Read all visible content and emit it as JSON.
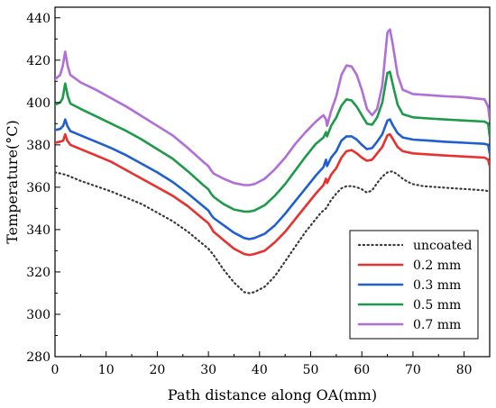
{
  "chart_data": {
    "type": "line",
    "title": "",
    "xlabel": "Path distance along OA(mm)",
    "ylabel": "Temperature(°C)",
    "xlim": [
      0,
      85
    ],
    "ylim": [
      280,
      445
    ],
    "xticks": [
      0,
      10,
      20,
      30,
      40,
      50,
      60,
      70,
      80
    ],
    "yticks": [
      280,
      300,
      320,
      340,
      360,
      380,
      400,
      420,
      440
    ],
    "grid": false,
    "legend_position": "bottom-right",
    "series": [
      {
        "name": "uncoated",
        "color": "#3a3a3a",
        "dash": "dotted",
        "points": [
          [
            0,
            367
          ],
          [
            1,
            366.5
          ],
          [
            2,
            366
          ],
          [
            3,
            365
          ],
          [
            5,
            363
          ],
          [
            8,
            360.5
          ],
          [
            11,
            358
          ],
          [
            14,
            355
          ],
          [
            17,
            352
          ],
          [
            20,
            348
          ],
          [
            23,
            344
          ],
          [
            26,
            339
          ],
          [
            29,
            333
          ],
          [
            30,
            331
          ],
          [
            31,
            328
          ],
          [
            33,
            321
          ],
          [
            35,
            315
          ],
          [
            37,
            310.5
          ],
          [
            38,
            310
          ],
          [
            39,
            310.5
          ],
          [
            41,
            313
          ],
          [
            43,
            318
          ],
          [
            45,
            325
          ],
          [
            47,
            332
          ],
          [
            49,
            339
          ],
          [
            51,
            345
          ],
          [
            52,
            348
          ],
          [
            53,
            350
          ],
          [
            54,
            354
          ],
          [
            55,
            357
          ],
          [
            56,
            359.5
          ],
          [
            57,
            360.5
          ],
          [
            58,
            360.5
          ],
          [
            59,
            360
          ],
          [
            60,
            359
          ],
          [
            61,
            357.5
          ],
          [
            62,
            358.5
          ],
          [
            63,
            362
          ],
          [
            64,
            365
          ],
          [
            65,
            367
          ],
          [
            66,
            367.5
          ],
          [
            67,
            366
          ],
          [
            68,
            364
          ],
          [
            69,
            362.5
          ],
          [
            70,
            361.5
          ],
          [
            72,
            360.5
          ],
          [
            75,
            360
          ],
          [
            78,
            359.5
          ],
          [
            81,
            359
          ],
          [
            84,
            358.5
          ],
          [
            85,
            358
          ]
        ]
      },
      {
        "name": "0.2 mm",
        "color": "#e8312e",
        "dash": "solid",
        "points": [
          [
            0,
            381
          ],
          [
            1,
            381.5
          ],
          [
            1.6,
            382
          ],
          [
            2,
            385
          ],
          [
            2.4,
            382
          ],
          [
            3,
            380
          ],
          [
            5,
            378
          ],
          [
            8,
            375
          ],
          [
            11,
            372
          ],
          [
            14,
            368
          ],
          [
            17,
            364
          ],
          [
            20,
            360
          ],
          [
            23,
            356
          ],
          [
            26,
            351
          ],
          [
            29,
            345
          ],
          [
            30,
            343
          ],
          [
            30.5,
            341
          ],
          [
            31,
            339
          ],
          [
            33,
            335
          ],
          [
            35,
            331
          ],
          [
            37,
            328.5
          ],
          [
            38,
            328
          ],
          [
            39,
            328.5
          ],
          [
            41,
            330
          ],
          [
            43,
            334
          ],
          [
            45,
            339
          ],
          [
            47,
            345
          ],
          [
            49,
            351
          ],
          [
            51,
            357
          ],
          [
            52.5,
            361
          ],
          [
            53,
            364
          ],
          [
            53.2,
            362
          ],
          [
            54,
            366
          ],
          [
            55,
            369
          ],
          [
            56,
            374
          ],
          [
            57,
            377
          ],
          [
            58,
            377.5
          ],
          [
            59,
            376
          ],
          [
            60,
            374
          ],
          [
            61,
            372.5
          ],
          [
            62,
            373
          ],
          [
            63,
            376
          ],
          [
            64,
            379
          ],
          [
            65,
            384.5
          ],
          [
            65.5,
            385
          ],
          [
            66,
            383
          ],
          [
            67,
            379
          ],
          [
            68,
            377
          ],
          [
            70,
            376
          ],
          [
            73,
            375.5
          ],
          [
            76,
            375
          ],
          [
            80,
            374.5
          ],
          [
            84,
            374
          ],
          [
            84.7,
            373
          ],
          [
            85,
            370
          ]
        ]
      },
      {
        "name": "0.3 mm",
        "color": "#1f5fd0",
        "dash": "solid",
        "points": [
          [
            0,
            387
          ],
          [
            1,
            387.5
          ],
          [
            1.6,
            389
          ],
          [
            2,
            392
          ],
          [
            2.4,
            389
          ],
          [
            3,
            386.5
          ],
          [
            5,
            384.5
          ],
          [
            8,
            381.5
          ],
          [
            11,
            378.5
          ],
          [
            14,
            375
          ],
          [
            17,
            371
          ],
          [
            20,
            367
          ],
          [
            23,
            362.5
          ],
          [
            26,
            357
          ],
          [
            29,
            351
          ],
          [
            30,
            349
          ],
          [
            30.5,
            347
          ],
          [
            31,
            345.5
          ],
          [
            33,
            342
          ],
          [
            35,
            338.5
          ],
          [
            37,
            336
          ],
          [
            38,
            335.5
          ],
          [
            39,
            336
          ],
          [
            41,
            338
          ],
          [
            43,
            342
          ],
          [
            45,
            347.5
          ],
          [
            47,
            353.5
          ],
          [
            49,
            359.5
          ],
          [
            51,
            365.5
          ],
          [
            52.5,
            369.5
          ],
          [
            53,
            373
          ],
          [
            53.2,
            370
          ],
          [
            54,
            374
          ],
          [
            55,
            377
          ],
          [
            56,
            382
          ],
          [
            57,
            384
          ],
          [
            58,
            384
          ],
          [
            59,
            382.5
          ],
          [
            60,
            380
          ],
          [
            61,
            378
          ],
          [
            62,
            378.5
          ],
          [
            63,
            381.5
          ],
          [
            64,
            385
          ],
          [
            65,
            391.5
          ],
          [
            65.5,
            392
          ],
          [
            66,
            389.5
          ],
          [
            67,
            385.5
          ],
          [
            68,
            383.5
          ],
          [
            70,
            382.5
          ],
          [
            73,
            382
          ],
          [
            76,
            381.5
          ],
          [
            80,
            381
          ],
          [
            84,
            380.5
          ],
          [
            84.7,
            380
          ],
          [
            85,
            376
          ]
        ]
      },
      {
        "name": "0.5 mm",
        "color": "#1e9a4a",
        "dash": "solid",
        "points": [
          [
            0,
            399
          ],
          [
            1,
            400
          ],
          [
            1.5,
            402
          ],
          [
            2,
            409
          ],
          [
            2.5,
            403
          ],
          [
            3,
            399.5
          ],
          [
            5,
            397
          ],
          [
            8,
            393.5
          ],
          [
            11,
            390
          ],
          [
            14,
            386.5
          ],
          [
            17,
            382.5
          ],
          [
            20,
            378
          ],
          [
            23,
            373.5
          ],
          [
            26,
            367.5
          ],
          [
            29,
            361
          ],
          [
            30,
            359
          ],
          [
            30.5,
            357
          ],
          [
            31,
            355.5
          ],
          [
            33,
            352
          ],
          [
            35,
            349.5
          ],
          [
            37,
            348.5
          ],
          [
            38,
            348.5
          ],
          [
            39,
            349
          ],
          [
            41,
            351.5
          ],
          [
            43,
            356
          ],
          [
            45,
            361.5
          ],
          [
            47,
            368
          ],
          [
            49,
            374.5
          ],
          [
            51,
            380.5
          ],
          [
            52.5,
            383.5
          ],
          [
            53,
            386
          ],
          [
            53.2,
            384
          ],
          [
            54,
            389
          ],
          [
            55,
            393
          ],
          [
            56,
            398.5
          ],
          [
            57,
            401.5
          ],
          [
            58,
            401
          ],
          [
            59,
            398
          ],
          [
            60,
            394
          ],
          [
            61,
            390
          ],
          [
            62,
            389.5
          ],
          [
            63,
            393
          ],
          [
            64,
            400
          ],
          [
            65,
            414
          ],
          [
            65.5,
            414.5
          ],
          [
            66,
            409
          ],
          [
            67,
            399
          ],
          [
            68,
            394.5
          ],
          [
            70,
            393
          ],
          [
            73,
            392.5
          ],
          [
            76,
            392
          ],
          [
            80,
            391.5
          ],
          [
            84,
            391
          ],
          [
            84.7,
            390
          ],
          [
            85,
            384
          ]
        ]
      },
      {
        "name": "0.7 mm",
        "color": "#b06ed8",
        "dash": "solid",
        "points": [
          [
            0,
            411
          ],
          [
            1,
            413
          ],
          [
            1.5,
            417
          ],
          [
            2,
            424
          ],
          [
            2.5,
            417
          ],
          [
            3,
            413
          ],
          [
            5,
            409.5
          ],
          [
            8,
            406
          ],
          [
            11,
            402
          ],
          [
            14,
            398
          ],
          [
            17,
            393.5
          ],
          [
            20,
            389
          ],
          [
            23,
            384.5
          ],
          [
            26,
            378.5
          ],
          [
            29,
            372
          ],
          [
            30,
            370
          ],
          [
            30.5,
            368
          ],
          [
            31,
            366.5
          ],
          [
            33,
            364
          ],
          [
            35,
            362
          ],
          [
            37,
            361
          ],
          [
            38,
            361
          ],
          [
            39,
            361.5
          ],
          [
            41,
            364
          ],
          [
            43,
            368.5
          ],
          [
            45,
            374
          ],
          [
            47,
            380.5
          ],
          [
            49,
            386
          ],
          [
            51,
            391
          ],
          [
            52.5,
            394
          ],
          [
            53,
            392
          ],
          [
            53.2,
            389
          ],
          [
            54,
            396
          ],
          [
            55,
            403
          ],
          [
            56,
            413
          ],
          [
            57,
            417.5
          ],
          [
            58,
            417
          ],
          [
            59,
            413
          ],
          [
            60,
            406
          ],
          [
            61,
            397
          ],
          [
            62,
            394
          ],
          [
            63,
            397
          ],
          [
            64,
            408
          ],
          [
            65,
            433
          ],
          [
            65.5,
            434.5
          ],
          [
            66,
            428
          ],
          [
            67,
            413
          ],
          [
            68,
            406
          ],
          [
            70,
            404
          ],
          [
            73,
            403.5
          ],
          [
            76,
            403
          ],
          [
            80,
            402.5
          ],
          [
            84,
            401.5
          ],
          [
            84.7,
            398
          ],
          [
            85,
            392
          ]
        ]
      }
    ]
  }
}
